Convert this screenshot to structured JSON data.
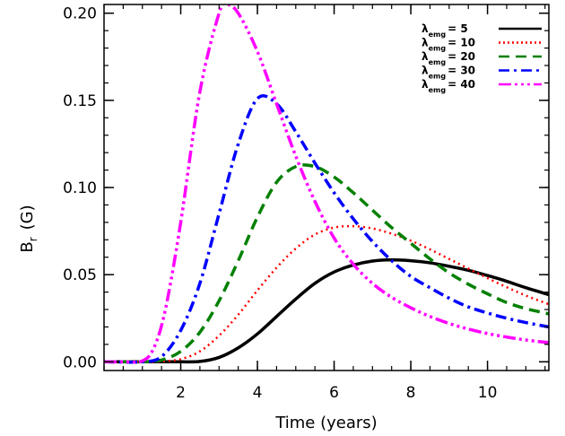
{
  "chart_data": {
    "type": "line",
    "xlabel": "Time (years)",
    "ylabel": {
      "main": "B",
      "sub": "r",
      "unit": "(G)"
    },
    "xlim": [
      0,
      11.6
    ],
    "ylim": [
      -0.005,
      0.205
    ],
    "xticks": [
      2,
      4,
      6,
      8,
      10
    ],
    "xtick_labels": [
      "2",
      "4",
      "6",
      "8",
      "10"
    ],
    "xminor_step": 0.5,
    "yticks": [
      0.0,
      0.05,
      0.1,
      0.15,
      0.2
    ],
    "ytick_labels": [
      "0.00",
      "0.05",
      "0.10",
      "0.15",
      "0.20"
    ],
    "yminor_step": 0.01,
    "grid": false,
    "legend_position": "top-right",
    "legend_symbol": "λ",
    "legend_subscript": "emg",
    "series": [
      {
        "name": "= 5",
        "legend_value": "5",
        "color": "#000000",
        "style": "solid",
        "x": [
          0,
          1,
          1.5,
          2,
          2.5,
          3,
          3.5,
          4,
          4.5,
          5,
          5.5,
          6,
          6.5,
          7,
          7.5,
          8,
          8.5,
          9,
          9.5,
          10,
          10.5,
          11,
          11.6
        ],
        "y": [
          0,
          0,
          0,
          0,
          0.0002,
          0.0025,
          0.008,
          0.016,
          0.026,
          0.036,
          0.045,
          0.0515,
          0.0555,
          0.0578,
          0.0585,
          0.058,
          0.0568,
          0.0548,
          0.0525,
          0.0495,
          0.0462,
          0.0425,
          0.0385
        ]
      },
      {
        "name": "= 10",
        "legend_value": "10",
        "color": "#ff0000",
        "style": "dotted",
        "x": [
          0,
          1,
          1.5,
          2,
          2.5,
          3,
          3.5,
          4,
          4.5,
          5,
          5.5,
          6,
          6.5,
          7,
          7.5,
          8,
          8.5,
          9,
          9.5,
          10,
          10.5,
          11,
          11.6
        ],
        "y": [
          0,
          0,
          0.0002,
          0.0015,
          0.006,
          0.015,
          0.027,
          0.041,
          0.054,
          0.065,
          0.073,
          0.077,
          0.0778,
          0.0765,
          0.0735,
          0.0695,
          0.0645,
          0.059,
          0.0535,
          0.048,
          0.0428,
          0.038,
          0.033
        ]
      },
      {
        "name": "= 20",
        "legend_value": "20",
        "color": "#008000",
        "style": "dashed",
        "x": [
          0,
          1,
          1.5,
          2,
          2.5,
          3,
          3.5,
          4,
          4.5,
          5,
          5.5,
          6,
          6.5,
          7,
          7.5,
          8,
          8.5,
          9,
          9.5,
          10,
          10.5,
          11,
          11.6
        ],
        "y": [
          0,
          0,
          0.001,
          0.006,
          0.017,
          0.035,
          0.058,
          0.083,
          0.103,
          0.112,
          0.112,
          0.106,
          0.097,
          0.087,
          0.077,
          0.068,
          0.059,
          0.051,
          0.0445,
          0.039,
          0.034,
          0.0305,
          0.0275
        ]
      },
      {
        "name": "= 30",
        "legend_value": "30",
        "color": "#0000ff",
        "style": "dashdot",
        "x": [
          0,
          1,
          1.5,
          2,
          2.5,
          3,
          3.5,
          4,
          4.5,
          5,
          5.5,
          6,
          6.5,
          7,
          7.5,
          8,
          8.5,
          9,
          9.5,
          10,
          10.5,
          11,
          11.6
        ],
        "y": [
          0,
          0,
          0.003,
          0.018,
          0.045,
          0.085,
          0.125,
          0.151,
          0.148,
          0.132,
          0.114,
          0.097,
          0.082,
          0.069,
          0.058,
          0.049,
          0.0425,
          0.0365,
          0.0315,
          0.028,
          0.025,
          0.0225,
          0.02
        ]
      },
      {
        "name": "= 40",
        "legend_value": "40",
        "color": "#ff00ff",
        "style": "dashdotdotdot",
        "x": [
          0,
          0.5,
          1,
          1.3,
          1.6,
          2,
          2.5,
          3,
          3.2,
          3.5,
          4,
          4.5,
          5,
          5.5,
          6,
          6.5,
          7,
          7.5,
          8,
          8.5,
          9,
          9.5,
          10,
          10.5,
          11,
          11.6
        ],
        "y": [
          0,
          0,
          0.0005,
          0.008,
          0.03,
          0.08,
          0.155,
          0.2,
          0.205,
          0.2,
          0.178,
          0.148,
          0.118,
          0.092,
          0.071,
          0.056,
          0.045,
          0.037,
          0.031,
          0.026,
          0.022,
          0.0188,
          0.0162,
          0.0142,
          0.0125,
          0.011
        ]
      }
    ]
  }
}
